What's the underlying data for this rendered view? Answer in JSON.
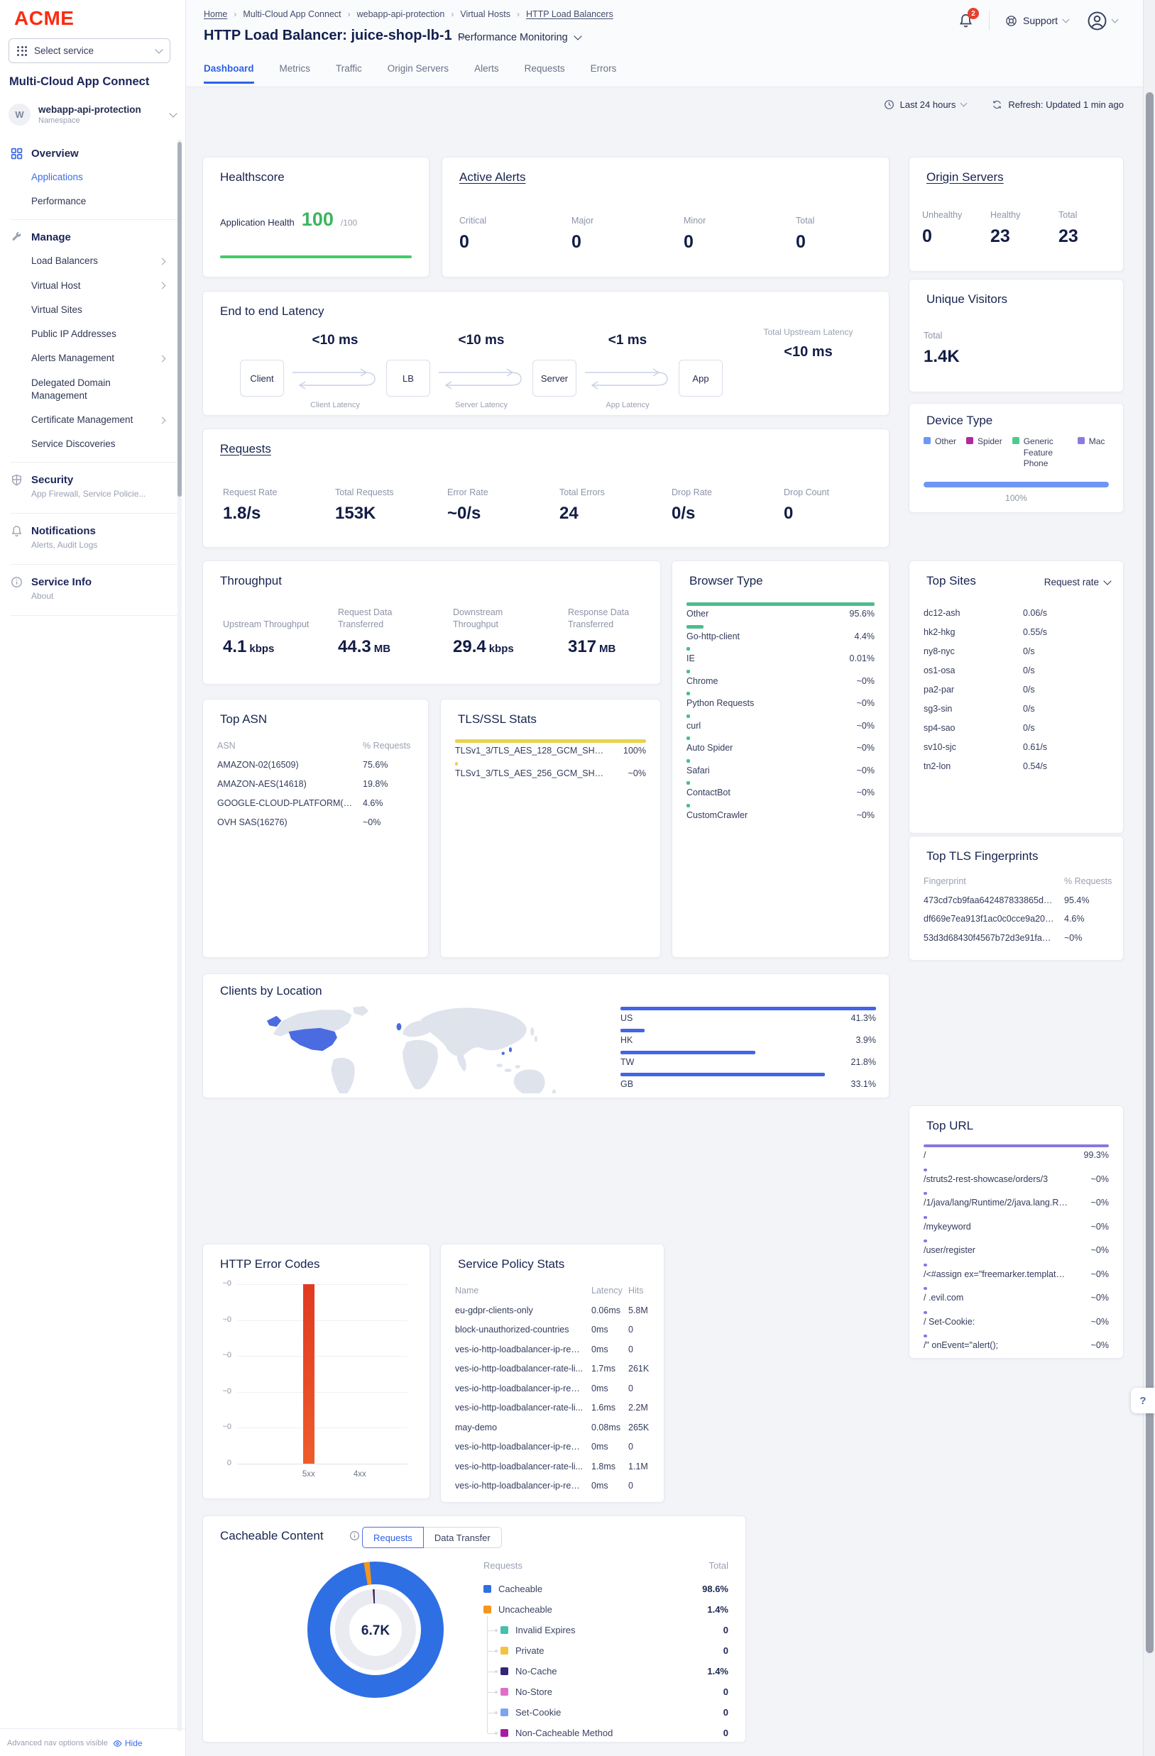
{
  "brand": {
    "logo_text": "ACME"
  },
  "icons": {
    "notifications": "bell-icon",
    "support": "lifebuoy-icon",
    "account": "user-icon",
    "time": "clock-icon",
    "refresh": "refresh-icon",
    "help": "question-icon",
    "hide": "eye-icon",
    "info": "info-circle-icon"
  },
  "sidebar": {
    "service_selector": {
      "placeholder": "Select service"
    },
    "product_title": "Multi-Cloud App Connect",
    "namespace": {
      "initial": "W",
      "name": "webapp-api-protection",
      "type_label": "Namespace"
    },
    "sections": [
      {
        "icon": "grid-icon",
        "label": "Overview",
        "items": [
          {
            "label": "Applications",
            "active": true
          },
          {
            "label": "Performance"
          }
        ]
      },
      {
        "icon": "wrench-icon",
        "label": "Manage",
        "items": [
          {
            "label": "Load Balancers",
            "chevron": true
          },
          {
            "label": "Virtual Host",
            "chevron": true
          },
          {
            "label": "Virtual Sites"
          },
          {
            "label": "Public IP Addresses"
          },
          {
            "label": "Alerts Management",
            "chevron": true
          },
          {
            "label": "Delegated Domain Management"
          },
          {
            "label": "Certificate Management",
            "chevron": true
          },
          {
            "label": "Service Discoveries"
          }
        ]
      },
      {
        "icon": "shield-icon",
        "label": "Security",
        "subtitle": "App Firewall, Service Policie..."
      },
      {
        "icon": "bell-icon",
        "label": "Notifications",
        "subtitle": "Alerts, Audit Logs"
      },
      {
        "icon": "info-icon",
        "label": "Service Info",
        "subtitle": "About"
      }
    ],
    "footer": {
      "text": "Advanced nav options visible",
      "action": "Hide"
    }
  },
  "header": {
    "breadcrumb": [
      {
        "label": "Home",
        "link": true
      },
      {
        "label": "Multi-Cloud App Connect"
      },
      {
        "label": "webapp-api-protection"
      },
      {
        "label": "Virtual Hosts"
      },
      {
        "label": "HTTP Load Balancers",
        "link": true
      }
    ],
    "page_title": "HTTP Load Balancer: juice-shop-lb-1",
    "view_selector": "Performance Monitoring",
    "notifications_count": "2",
    "support_label": "Support"
  },
  "tabs": [
    "Dashboard",
    "Metrics",
    "Traffic",
    "Origin Servers",
    "Alerts",
    "Requests",
    "Errors"
  ],
  "active_tab": "Dashboard",
  "toolbar": {
    "time_range": "Last 24 hours",
    "refresh_status": "Refresh: Updated 1 min ago"
  },
  "cards": {
    "healthscore": {
      "title": "Healthscore",
      "metric_label": "Application Health",
      "score": "100",
      "score_max": "/100",
      "bar_color": "#44ca69"
    },
    "active_alerts": {
      "title": "Active Alerts",
      "stats": [
        {
          "label": "Critical",
          "value": "0"
        },
        {
          "label": "Major",
          "value": "0"
        },
        {
          "label": "Minor",
          "value": "0"
        },
        {
          "label": "Total",
          "value": "0"
        }
      ]
    },
    "origin_servers": {
      "title": "Origin Servers",
      "stats": [
        {
          "label": "Unhealthy",
          "value": "0"
        },
        {
          "label": "Healthy",
          "value": "23"
        },
        {
          "label": "Total",
          "value": "23"
        }
      ]
    },
    "latency": {
      "title": "End to end Latency",
      "nodes": [
        "Client",
        "LB",
        "Server",
        "App"
      ],
      "hops": [
        {
          "value": "<10 ms",
          "label": "Client Latency"
        },
        {
          "value": "<10 ms",
          "label": "Server Latency"
        },
        {
          "value": "<1 ms",
          "label": "App Latency"
        }
      ],
      "total_label": "Total Upstream Latency",
      "total_value": "<10 ms"
    },
    "unique_visitors": {
      "title": "Unique Visitors",
      "stat_label": "Total",
      "stat_value": "1.4K"
    },
    "requests": {
      "title": "Requests",
      "stats": [
        {
          "label": "Request Rate",
          "value": "1.8/s"
        },
        {
          "label": "Total Requests",
          "value": "153K"
        },
        {
          "label": "Error Rate",
          "value": "~0/s"
        },
        {
          "label": "Total Errors",
          "value": "24"
        },
        {
          "label": "Drop Rate",
          "value": "0/s"
        },
        {
          "label": "Drop Count",
          "value": "0"
        }
      ]
    },
    "device_type": {
      "title": "Device Type",
      "bar_percent": "100%",
      "bar_color": "#6e96f5",
      "legend": [
        {
          "label": "Other",
          "color": "#6e96f5"
        },
        {
          "label": "Spider",
          "color": "#b0289b"
        },
        {
          "label": "Generic Feature Phone",
          "color": "#4fc98e"
        },
        {
          "label": "Mac",
          "color": "#8a7ae0"
        }
      ]
    },
    "throughput": {
      "title": "Throughput",
      "stats": [
        {
          "label": "Upstream Throughput",
          "value": "4.1",
          "unit": "kbps"
        },
        {
          "label": "Request Data Transferred",
          "value": "44.3",
          "unit": "MB"
        },
        {
          "label": "Downstream Throughput",
          "value": "29.4",
          "unit": "kbps"
        },
        {
          "label": "Response Data Transferred",
          "value": "317",
          "unit": "MB"
        }
      ]
    },
    "browser_type": {
      "title": "Browser Type",
      "bar_color": "#4dbd8d",
      "rows": [
        {
          "name": "Other",
          "value": "95.6%",
          "bar": 100
        },
        {
          "name": "Go-http-client",
          "value": "4.4%",
          "bar": 9
        },
        {
          "name": "IE",
          "value": "0.01%",
          "bar": 2
        },
        {
          "name": "Chrome",
          "value": "~0%",
          "bar": 2
        },
        {
          "name": "Python Requests",
          "value": "~0%",
          "bar": 2
        },
        {
          "name": "curl",
          "value": "~0%",
          "bar": 2
        },
        {
          "name": "Auto Spider",
          "value": "~0%",
          "bar": 2
        },
        {
          "name": "Safari",
          "value": "~0%",
          "bar": 2
        },
        {
          "name": "ContactBot",
          "value": "~0%",
          "bar": 2
        },
        {
          "name": "CustomCrawler",
          "value": "~0%",
          "bar": 2
        }
      ]
    },
    "top_sites": {
      "title": "Top Sites",
      "sort_by": "Request rate",
      "rows": [
        [
          "dc12-ash",
          "0.06/s"
        ],
        [
          "hk2-hkg",
          "0.55/s"
        ],
        [
          "ny8-nyc",
          "0/s"
        ],
        [
          "os1-osa",
          "0/s"
        ],
        [
          "pa2-par",
          "0/s"
        ],
        [
          "sg3-sin",
          "0/s"
        ],
        [
          "sp4-sao",
          "0/s"
        ],
        [
          "sv10-sjc",
          "0.61/s"
        ],
        [
          "tn2-lon",
          "0.54/s"
        ]
      ]
    },
    "top_asn": {
      "title": "Top ASN",
      "col1": "ASN",
      "col2": "% Requests",
      "rows": [
        [
          "AMAZON-02(16509)",
          "75.6%"
        ],
        [
          "AMAZON-AES(14618)",
          "19.8%"
        ],
        [
          "GOOGLE-CLOUD-PLATFORM(3969...",
          "4.6%"
        ],
        [
          "OVH SAS(16276)",
          "~0%"
        ]
      ]
    },
    "tls_ssl": {
      "title": "TLS/SSL Stats",
      "bar_color": "#e8d44d",
      "rows": [
        {
          "name": "TLSv1_3/TLS_AES_128_GCM_SHA256",
          "value": "100%",
          "bar": 100
        },
        {
          "name": "TLSv1_3/TLS_AES_256_GCM_SHA384",
          "value": "~0%",
          "bar": 1.5
        }
      ]
    },
    "fingerprints": {
      "title": "Top TLS Fingerprints",
      "col1": "Fingerprint",
      "col2": "% Requests",
      "rows": [
        [
          "473cd7cb9faa642487833865d516...",
          "95.4%"
        ],
        [
          "df669e7ea913f1ac0c0cce9a201a2...",
          "4.6%"
        ],
        [
          "53d3d68430f4567b72d3e91fa8ce...",
          "~0%"
        ]
      ]
    },
    "clients_location": {
      "title": "Clients by Location",
      "bar_color": "#4364e8",
      "rows": [
        {
          "name": "US",
          "value": "41.3%",
          "bar": 100
        },
        {
          "name": "HK",
          "value": "3.9%",
          "bar": 9.4
        },
        {
          "name": "TW",
          "value": "21.8%",
          "bar": 52.8
        },
        {
          "name": "GB",
          "value": "33.1%",
          "bar": 80.1
        }
      ]
    },
    "top_url": {
      "title": "Top URL",
      "bar_color": "#8678e0",
      "rows": [
        {
          "name": "/",
          "value": "99.3%",
          "bar": 100
        },
        {
          "name": "/struts2-rest-showcase/orders/3",
          "value": "~0%",
          "bar": 2
        },
        {
          "name": "/1/java/lang/Runtime/2/java.lang.Runt...",
          "value": "~0%",
          "bar": 2
        },
        {
          "name": "/mykeyword",
          "value": "~0%",
          "bar": 2
        },
        {
          "name": "/user/register",
          "value": "~0%",
          "bar": 2
        },
        {
          "name": "/<#assign ex=\"freemarker.template.u...",
          "value": "~0%",
          "bar": 2
        },
        {
          "name": "/ .evil.com",
          "value": "~0%",
          "bar": 2
        },
        {
          "name": "/ Set-Cookie:",
          "value": "~0%",
          "bar": 2
        },
        {
          "name": "/\" onEvent=\"alert();",
          "value": "~0%",
          "bar": 2
        }
      ]
    },
    "error_codes": {
      "title": "HTTP Error Codes",
      "y_labels": [
        "~0",
        "~0",
        "~0",
        "~0",
        "~0",
        "0"
      ],
      "bars": [
        {
          "category": "5xx",
          "height": 100,
          "color_top": "#e03a22"
        },
        {
          "category": "4xx",
          "height": 0
        }
      ]
    },
    "service_policy": {
      "title": "Service Policy Stats",
      "columns": [
        "Name",
        "Latency",
        "Hits"
      ],
      "rows": [
        [
          "eu-gdpr-clients-only",
          "0.06ms",
          "5.8M"
        ],
        [
          "block-unauthorized-countries",
          "0ms",
          "0"
        ],
        [
          "ves-io-http-loadbalancer-ip-rep...",
          "0ms",
          "0"
        ],
        [
          "ves-io-http-loadbalancer-rate-li...",
          "1.7ms",
          "261K"
        ],
        [
          "ves-io-http-loadbalancer-ip-rep...",
          "0ms",
          "0"
        ],
        [
          "ves-io-http-loadbalancer-rate-li...",
          "1.6ms",
          "2.2M"
        ],
        [
          "may-demo",
          "0.08ms",
          "265K"
        ],
        [
          "ves-io-http-loadbalancer-ip-rep...",
          "0ms",
          "0"
        ],
        [
          "ves-io-http-loadbalancer-rate-li...",
          "1.8ms",
          "1.1M"
        ],
        [
          "ves-io-http-loadbalancer-ip-rep...",
          "0ms",
          "0"
        ]
      ]
    },
    "cacheable": {
      "title": "Cacheable Content",
      "toggle": [
        "Requests",
        "Data Transfer"
      ],
      "active_toggle": "Requests",
      "donut_center": "6.7K",
      "donut": {
        "slices": [
          {
            "label": "Cacheable",
            "percent": 98.6,
            "color": "#2f6fe4"
          },
          {
            "label": "Uncacheable",
            "percent": 1.4,
            "color": "#f5961d"
          }
        ]
      },
      "legend_header": {
        "left": "Requests",
        "right": "Total"
      },
      "legend": [
        {
          "label": "Cacheable",
          "value": "98.6%",
          "color": "#2f6fe4",
          "indent": false
        },
        {
          "label": "Uncacheable",
          "value": "1.4%",
          "color": "#f5961d",
          "indent": false
        },
        {
          "label": "Invalid Expires",
          "value": "0",
          "color": "#45bfae",
          "indent": true
        },
        {
          "label": "Private",
          "value": "0",
          "color": "#f2c340",
          "indent": true
        },
        {
          "label": "No-Cache",
          "value": "1.4%",
          "color": "#332577",
          "indent": true
        },
        {
          "label": "No-Store",
          "value": "0",
          "color": "#df6fc6",
          "indent": true
        },
        {
          "label": "Set-Cookie",
          "value": "0",
          "color": "#7da4f2",
          "indent": true
        },
        {
          "label": "Non-Cacheable Method",
          "value": "0",
          "color": "#a91ba0",
          "indent": true
        }
      ]
    }
  },
  "help_button": "?"
}
